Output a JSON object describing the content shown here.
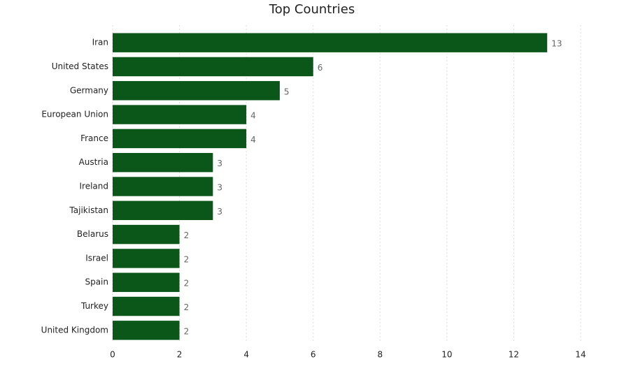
{
  "chart_data": {
    "type": "bar",
    "orientation": "horizontal",
    "title": "Top Countries",
    "categories": [
      "Iran",
      "United States",
      "Germany",
      "European Union",
      "France",
      "Austria",
      "Ireland",
      "Tajikistan",
      "Belarus",
      "Israel",
      "Spain",
      "Turkey",
      "United Kingdom"
    ],
    "values": [
      13,
      6,
      5,
      4,
      4,
      3,
      3,
      3,
      2,
      2,
      2,
      2,
      2
    ],
    "color": "#0b5619",
    "xlim": [
      0,
      14
    ],
    "xticks": [
      0,
      2,
      4,
      6,
      8,
      10,
      12,
      14
    ],
    "grid": true
  }
}
